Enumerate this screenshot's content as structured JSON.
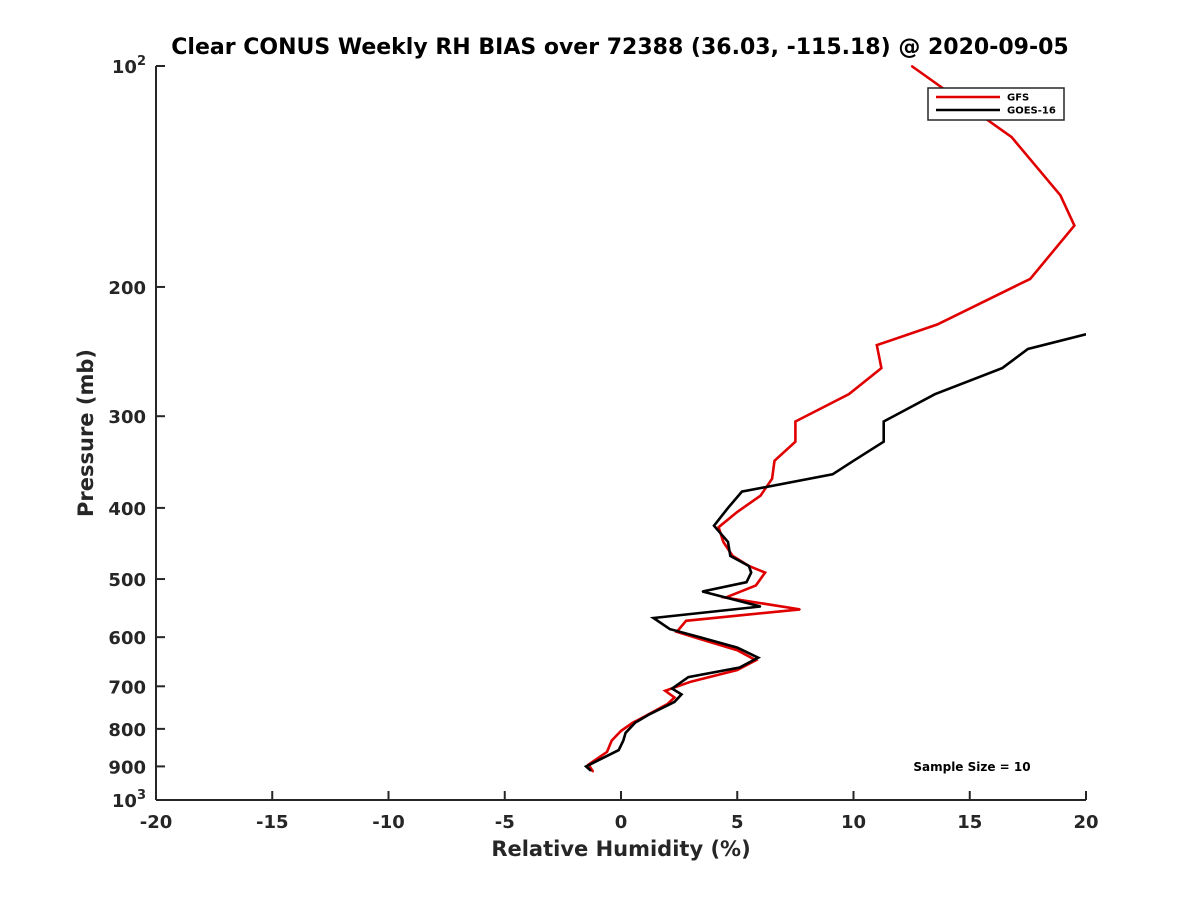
{
  "chart_data": {
    "type": "line",
    "title": "Clear CONUS Weekly RH BIAS over 72388 (36.03, -115.18) @ 2020-09-05",
    "xlabel": "Relative Humidity (%)",
    "ylabel": "Pressure (mb)",
    "xlim": [
      -20,
      20
    ],
    "ylim": [
      100,
      1000
    ],
    "y_scale": "log",
    "y_reversed": true,
    "x_ticks": [
      "-20",
      "-15",
      "-10",
      "-5",
      "0",
      "5",
      "10",
      "15",
      "20"
    ],
    "y_ticks": [
      {
        "value": 100,
        "base": "10",
        "exp": "2"
      },
      {
        "value": 200,
        "label": "200"
      },
      {
        "value": 300,
        "label": "300"
      },
      {
        "value": 400,
        "label": "400"
      },
      {
        "value": 500,
        "label": "500"
      },
      {
        "value": 600,
        "label": "600"
      },
      {
        "value": 700,
        "label": "700"
      },
      {
        "value": 800,
        "label": "800"
      },
      {
        "value": 900,
        "label": "900"
      },
      {
        "value": 1000,
        "base": "10",
        "exp": "3"
      }
    ],
    "grid": false,
    "legend_position": "top-right",
    "annotation": "Sample Size = 10",
    "series": [
      {
        "name": "GFS",
        "color": "#e00000",
        "points": [
          {
            "x": 12.5,
            "y": 100
          },
          {
            "x": 16.8,
            "y": 125
          },
          {
            "x": 18.9,
            "y": 150
          },
          {
            "x": 19.5,
            "y": 165
          },
          {
            "x": 17.6,
            "y": 195
          },
          {
            "x": 13.6,
            "y": 225
          },
          {
            "x": 11.0,
            "y": 240
          },
          {
            "x": 11.2,
            "y": 258
          },
          {
            "x": 9.8,
            "y": 280
          },
          {
            "x": 7.5,
            "y": 305
          },
          {
            "x": 7.5,
            "y": 325
          },
          {
            "x": 6.6,
            "y": 345
          },
          {
            "x": 6.5,
            "y": 365
          },
          {
            "x": 6.0,
            "y": 385
          },
          {
            "x": 5.0,
            "y": 405
          },
          {
            "x": 4.2,
            "y": 425
          },
          {
            "x": 4.4,
            "y": 445
          },
          {
            "x": 4.8,
            "y": 465
          },
          {
            "x": 5.5,
            "y": 480
          },
          {
            "x": 6.2,
            "y": 490
          },
          {
            "x": 5.8,
            "y": 510
          },
          {
            "x": 4.5,
            "y": 530
          },
          {
            "x": 7.7,
            "y": 550
          },
          {
            "x": 2.8,
            "y": 570
          },
          {
            "x": 2.4,
            "y": 590
          },
          {
            "x": 3.5,
            "y": 605
          },
          {
            "x": 5.0,
            "y": 625
          },
          {
            "x": 5.8,
            "y": 645
          },
          {
            "x": 5.0,
            "y": 665
          },
          {
            "x": 3.0,
            "y": 690
          },
          {
            "x": 1.9,
            "y": 710
          },
          {
            "x": 2.3,
            "y": 725
          },
          {
            "x": 2.0,
            "y": 740
          },
          {
            "x": 1.0,
            "y": 770
          },
          {
            "x": 0.5,
            "y": 785
          },
          {
            "x": 0.0,
            "y": 805
          },
          {
            "x": -0.4,
            "y": 830
          },
          {
            "x": -0.6,
            "y": 860
          },
          {
            "x": -1.4,
            "y": 895
          },
          {
            "x": -1.2,
            "y": 915
          }
        ]
      },
      {
        "name": "GOES-16",
        "color": "#000000",
        "points": [
          {
            "x": 20.0,
            "y": 232
          },
          {
            "x": 17.5,
            "y": 243
          },
          {
            "x": 16.4,
            "y": 258
          },
          {
            "x": 13.5,
            "y": 280
          },
          {
            "x": 11.3,
            "y": 305
          },
          {
            "x": 11.3,
            "y": 325
          },
          {
            "x": 10.0,
            "y": 345
          },
          {
            "x": 9.1,
            "y": 360
          },
          {
            "x": 5.2,
            "y": 380
          },
          {
            "x": 4.6,
            "y": 400
          },
          {
            "x": 4.0,
            "y": 423
          },
          {
            "x": 4.6,
            "y": 445
          },
          {
            "x": 4.7,
            "y": 465
          },
          {
            "x": 5.5,
            "y": 480
          },
          {
            "x": 5.6,
            "y": 490
          },
          {
            "x": 5.4,
            "y": 505
          },
          {
            "x": 3.5,
            "y": 520
          },
          {
            "x": 6.0,
            "y": 545
          },
          {
            "x": 1.4,
            "y": 565
          },
          {
            "x": 2.1,
            "y": 585
          },
          {
            "x": 3.4,
            "y": 600
          },
          {
            "x": 5.0,
            "y": 620
          },
          {
            "x": 5.9,
            "y": 640
          },
          {
            "x": 5.1,
            "y": 660
          },
          {
            "x": 2.9,
            "y": 680
          },
          {
            "x": 2.2,
            "y": 705
          },
          {
            "x": 2.6,
            "y": 718
          },
          {
            "x": 2.3,
            "y": 735
          },
          {
            "x": 1.2,
            "y": 765
          },
          {
            "x": 0.6,
            "y": 785
          },
          {
            "x": 0.2,
            "y": 810
          },
          {
            "x": 0.1,
            "y": 830
          },
          {
            "x": -0.1,
            "y": 855
          },
          {
            "x": -1.5,
            "y": 900
          },
          {
            "x": -1.3,
            "y": 912
          }
        ]
      }
    ]
  }
}
